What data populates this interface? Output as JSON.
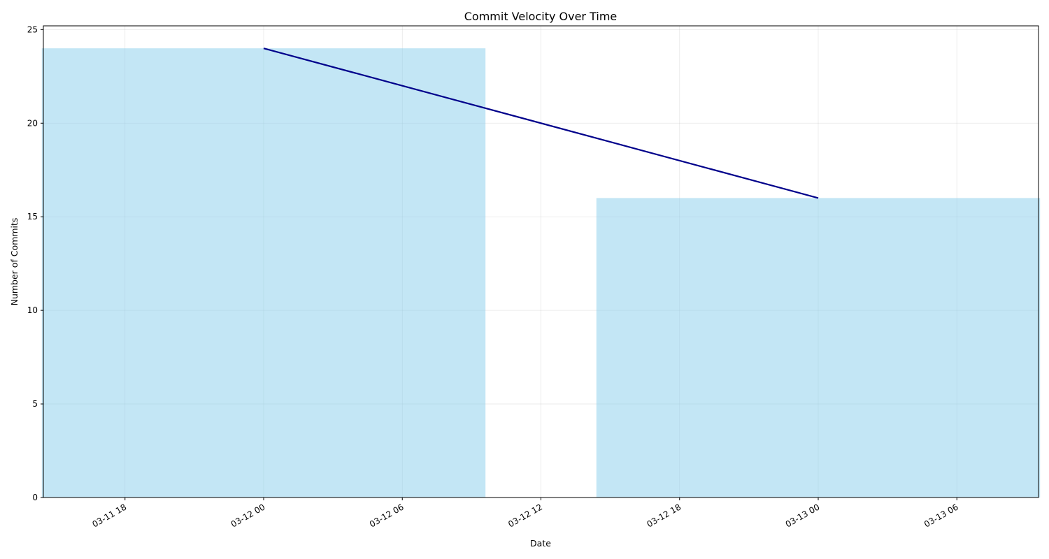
{
  "chart_data": {
    "type": "bar",
    "title": "Commit Velocity Over Time",
    "xlabel": "Date",
    "ylabel": "Number of Commits",
    "x_axis": {
      "kind": "datetime",
      "range": [
        "2024-03-11T14:28",
        "2024-03-13T09:32"
      ],
      "ticks": [
        {
          "value": "2024-03-11T18:00",
          "label": "03-11 18"
        },
        {
          "value": "2024-03-12T00:00",
          "label": "03-12 00"
        },
        {
          "value": "2024-03-12T06:00",
          "label": "03-12 06"
        },
        {
          "value": "2024-03-12T12:00",
          "label": "03-12 12"
        },
        {
          "value": "2024-03-12T18:00",
          "label": "03-12 18"
        },
        {
          "value": "2024-03-13T00:00",
          "label": "03-13 00"
        },
        {
          "value": "2024-03-13T06:00",
          "label": "03-13 06"
        }
      ]
    },
    "y_axis": {
      "range": [
        0,
        25.2
      ],
      "ticks": [
        0,
        5,
        10,
        15,
        20,
        25
      ]
    },
    "grid": true,
    "bars": {
      "color": "#87CEEB",
      "opacity": 0.5,
      "width_hours": 19.2,
      "x": [
        "2024-03-12T00:00",
        "2024-03-13T00:00"
      ],
      "values": [
        24,
        16
      ]
    },
    "line": {
      "color": "#00008B",
      "x": [
        "2024-03-12T00:00",
        "2024-03-13T00:00"
      ],
      "values": [
        24,
        16
      ]
    }
  }
}
